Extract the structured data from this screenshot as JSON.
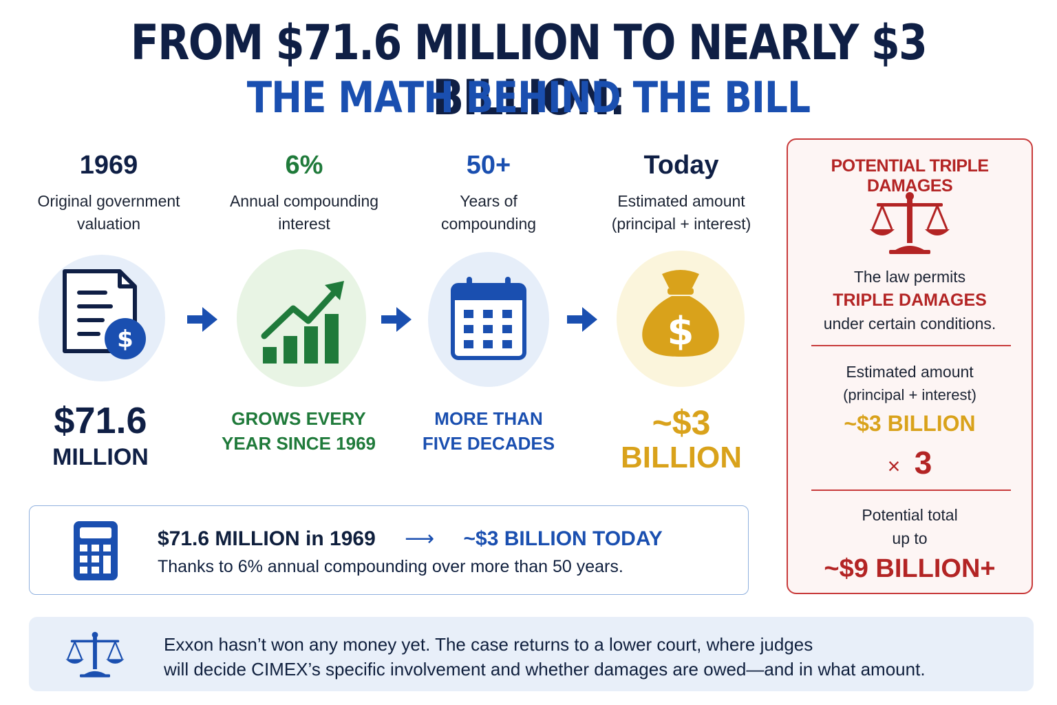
{
  "title": {
    "line1": "FROM $71.6 MILLION TO NEARLY $3 BILLION:",
    "line2": "THE MATH BEHIND THE BILL"
  },
  "steps": [
    {
      "head": "1969",
      "desc1": "Original government",
      "desc2": "valuation",
      "value1": "$71.6",
      "value2": "MILLION",
      "icon": "document-dollar-icon"
    },
    {
      "head": "6%",
      "desc1": "Annual compounding",
      "desc2": "interest",
      "value1": "GROWS EVERY",
      "value2": "YEAR SINCE 1969",
      "icon": "growth-chart-icon"
    },
    {
      "head": "50+",
      "desc1": "Years of",
      "desc2": "compounding",
      "value1": "MORE THAN",
      "value2": "FIVE DECADES",
      "icon": "calendar-icon"
    },
    {
      "head": "Today",
      "desc1": "Estimated amount",
      "desc2": "(principal + interest)",
      "value1": "~$3",
      "value2": "BILLION",
      "icon": "money-bag-icon"
    }
  ],
  "summary": {
    "from": "$71.6 MILLION in 1969",
    "arrow": "⟶",
    "to": "~$3 BILLION TODAY",
    "note": "Thanks to 6% annual compounding over more than 50 years."
  },
  "triple": {
    "heading": "POTENTIAL TRIPLE DAMAGES",
    "law1": "The law permits",
    "law2": "TRIPLE DAMAGES",
    "law3": "under certain conditions.",
    "est1": "Estimated amount",
    "est2": "(principal + interest)",
    "est_value": "~$3 BILLION",
    "times": "×",
    "multiplier": "3",
    "total1": "Potential total",
    "total2": "up to",
    "total_value": "~$9 BILLION+"
  },
  "footer": {
    "line1": "Exxon hasn’t won any money yet. The case returns to a lower court, where judges",
    "line2": "will decide CIMEX’s specific involvement and whether damages are owed—and in what amount."
  },
  "colors": {
    "navy": "#0f1f45",
    "blue": "#1a4fb0",
    "green": "#1f7a3a",
    "gold": "#d9a21b",
    "red": "#b32424"
  }
}
